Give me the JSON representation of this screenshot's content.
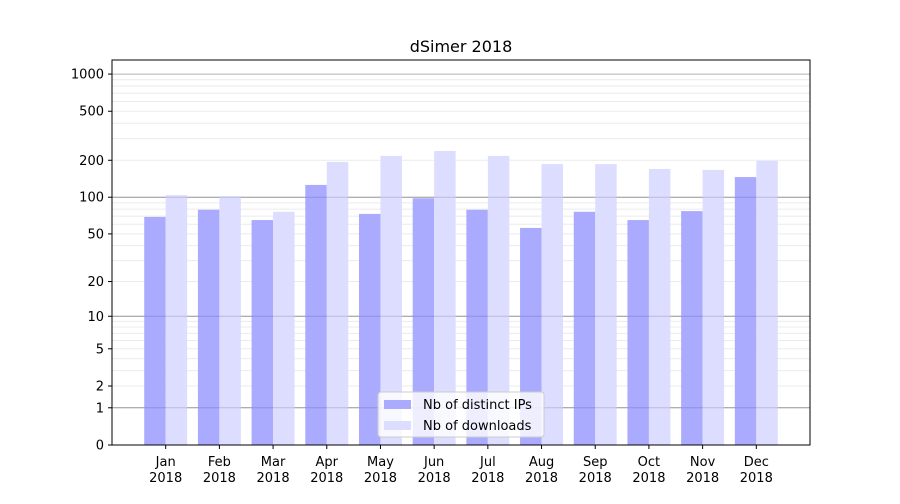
{
  "chart_data": {
    "type": "bar",
    "title": "dSimer 2018",
    "xlabel": "",
    "ylabel": "",
    "yscale": "log10(1+y)",
    "ylim": [
      0,
      1300
    ],
    "yticks": [
      0,
      1,
      2,
      5,
      10,
      20,
      50,
      100,
      200,
      500,
      1000
    ],
    "grid": true,
    "legend_position": "lower center",
    "categories": [
      "Jan\n2018",
      "Feb\n2018",
      "Mar\n2018",
      "Apr\n2018",
      "May\n2018",
      "Jun\n2018",
      "Jul\n2018",
      "Aug\n2018",
      "Sep\n2018",
      "Oct\n2018",
      "Nov\n2018",
      "Dec\n2018"
    ],
    "series": [
      {
        "name": "Nb of distinct IPs",
        "color": "#aaaaff",
        "values": [
          69,
          79,
          65,
          126,
          73,
          98,
          79,
          56,
          76,
          65,
          77,
          146
        ]
      },
      {
        "name": "Nb of downloads",
        "color": "#ddddff",
        "values": [
          104,
          102,
          76,
          194,
          217,
          238,
          217,
          186,
          186,
          170,
          167,
          198
        ]
      }
    ]
  }
}
